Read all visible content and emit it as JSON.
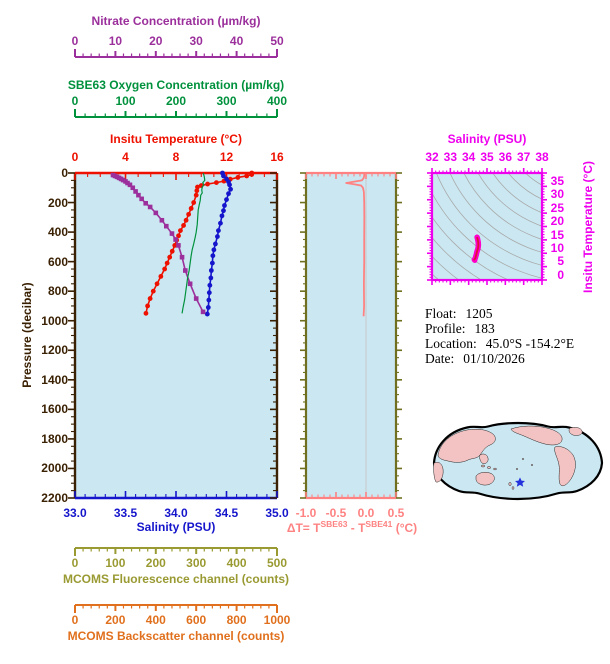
{
  "colors": {
    "nitrate": "#9b2f9b",
    "oxygen": "#00913d",
    "temperature": "#ee1100",
    "pressure_axis": "#3a2103",
    "salinity": "#1515cc",
    "fluorescence": "#9a9a33",
    "backscatter": "#e0701d",
    "deltaT": "#ff8282",
    "deltaT_side_axis": "#6f6f1f",
    "ts_magenta": "#ee00ee",
    "ts_data_outer": "#ff00cc",
    "ts_data_inner": "#dd1133",
    "panel_background": "#cbe8f2",
    "contour_gray": "#a9a9a9",
    "map_land": "#f3c3c3",
    "map_outline": "#000000",
    "star_blue": "#2233dd",
    "zero_gridline": "#c8c8c8"
  },
  "axes": {
    "nitrate": {
      "title": "Nitrate Concentration (µm/kg)",
      "ticks": [
        "0",
        "10",
        "20",
        "30",
        "40",
        "50"
      ]
    },
    "oxygen": {
      "title": "SBE63 Oxygen Concentration (µm/kg)",
      "ticks": [
        "0",
        "100",
        "200",
        "300",
        "400"
      ]
    },
    "temperature": {
      "title": "Insitu Temperature (°C)",
      "ticks": [
        "0",
        "4",
        "8",
        "12",
        "16"
      ]
    },
    "pressure": {
      "title": "Pressure (decibar)",
      "ticks": [
        "0",
        "200",
        "400",
        "600",
        "800",
        "1000",
        "1200",
        "1400",
        "1600",
        "1800",
        "2000",
        "2200"
      ]
    },
    "salinity": {
      "title": "Salinity (PSU)",
      "ticks": [
        "33.0",
        "33.5",
        "34.0",
        "34.5",
        "35.0"
      ]
    },
    "fluorescence": {
      "title": "MCOMS Fluorescence channel (counts)",
      "ticks": [
        "0",
        "100",
        "200",
        "300",
        "400",
        "500"
      ]
    },
    "backscatter": {
      "title": "MCOMS Backscatter channel (counts)",
      "ticks": [
        "0",
        "200",
        "400",
        "600",
        "800",
        "1000"
      ]
    },
    "deltaT": {
      "ticks": [
        "-1.0",
        "-0.5",
        "0.0",
        "0.5"
      ],
      "t1": "ΔT= T",
      "t2": "SBE63",
      "t3": " - T",
      "t4": "SBE41",
      "t5": " (°C)"
    },
    "ts": {
      "x_title": "Salinity (PSU)",
      "x_ticks": [
        "32",
        "33",
        "34",
        "35",
        "36",
        "37",
        "38"
      ],
      "y_title": "Insitu Temperature (°C)",
      "y_ticks": [
        "35",
        "30",
        "25",
        "20",
        "15",
        "10",
        "5",
        "0"
      ]
    }
  },
  "info": {
    "float_label": "Float:",
    "float_value": "1205",
    "profile_label": "Profile:",
    "profile_value": "183",
    "location_label": "Location:",
    "location_value": "45.0°S  -154.2°E",
    "date_label": "Date:",
    "date_value": "01/10/2026"
  },
  "chart_data": [
    {
      "id": "profiles",
      "type": "line",
      "ylabel": "Pressure (decibar)",
      "ylim": [
        0,
        2200
      ],
      "grid": false,
      "series": [
        {
          "name": "Insitu Temperature",
          "units": "°C",
          "xlim": [
            0,
            16
          ],
          "color_key": "temperature",
          "marker": "circle",
          "points": [
            [
              0,
              14.0
            ],
            [
              10,
              14.0
            ],
            [
              20,
              13.6
            ],
            [
              30,
              12.9
            ],
            [
              42,
              12.3
            ],
            [
              55,
              11.8
            ],
            [
              65,
              11.2
            ],
            [
              75,
              10.5
            ],
            [
              85,
              10.0
            ],
            [
              95,
              9.7
            ],
            [
              120,
              9.65
            ],
            [
              150,
              9.6
            ],
            [
              200,
              9.4
            ],
            [
              240,
              9.2
            ],
            [
              280,
              9.0
            ],
            [
              320,
              8.8
            ],
            [
              355,
              8.6
            ],
            [
              390,
              8.35
            ],
            [
              425,
              8.2
            ],
            [
              455,
              8.05
            ],
            [
              490,
              7.9
            ],
            [
              530,
              7.7
            ],
            [
              570,
              7.5
            ],
            [
              610,
              7.3
            ],
            [
              650,
              7.1
            ],
            [
              700,
              6.8
            ],
            [
              750,
              6.5
            ],
            [
              800,
              6.2
            ],
            [
              850,
              5.95
            ],
            [
              900,
              5.75
            ],
            [
              950,
              5.62
            ]
          ]
        },
        {
          "name": "Salinity",
          "units": "PSU",
          "xlim": [
            33,
            35
          ],
          "color_key": "salinity",
          "marker": "circle",
          "points": [
            [
              0,
              34.46
            ],
            [
              20,
              34.47
            ],
            [
              40,
              34.5
            ],
            [
              60,
              34.52
            ],
            [
              80,
              34.53
            ],
            [
              110,
              34.54
            ],
            [
              140,
              34.52
            ],
            [
              180,
              34.5
            ],
            [
              220,
              34.48
            ],
            [
              255,
              34.47
            ],
            [
              290,
              34.455
            ],
            [
              340,
              34.44
            ],
            [
              390,
              34.42
            ],
            [
              430,
              34.41
            ],
            [
              480,
              34.39
            ],
            [
              520,
              34.375
            ],
            [
              560,
              34.365
            ],
            [
              610,
              34.36
            ],
            [
              660,
              34.35
            ],
            [
              710,
              34.345
            ],
            [
              760,
              34.335
            ],
            [
              810,
              34.33
            ],
            [
              860,
              34.325
            ],
            [
              910,
              34.32
            ],
            [
              955,
              34.31
            ]
          ]
        },
        {
          "name": "Nitrate",
          "units": "µm/kg",
          "xlim": [
            0,
            50
          ],
          "color_key": "nitrate",
          "marker": "square",
          "points": [
            [
              14,
              9.4
            ],
            [
              20,
              9.9
            ],
            [
              26,
              10.4
            ],
            [
              33,
              10.9
            ],
            [
              40,
              11.4
            ],
            [
              48,
              11.9
            ],
            [
              57,
              12.5
            ],
            [
              68,
              13.0
            ],
            [
              80,
              13.6
            ],
            [
              100,
              14.3
            ],
            [
              125,
              15.0
            ],
            [
              150,
              15.7
            ],
            [
              175,
              16.5
            ],
            [
              205,
              17.5
            ],
            [
              230,
              18.6
            ],
            [
              270,
              20.0
            ],
            [
              320,
              21.5
            ],
            [
              360,
              22.6
            ],
            [
              410,
              24.0
            ],
            [
              450,
              24.9
            ],
            [
              490,
              25.6
            ],
            [
              570,
              26.5
            ],
            [
              660,
              27.3
            ],
            [
              750,
              28.5
            ],
            [
              850,
              30.0
            ],
            [
              940,
              31.7
            ]
          ]
        },
        {
          "name": "SBE63 Oxygen",
          "units": "µm/kg",
          "xlim": [
            0,
            400
          ],
          "color_key": "oxygen",
          "marker": "none",
          "points": [
            [
              0,
              254
            ],
            [
              25,
              256
            ],
            [
              50,
              257
            ],
            [
              65,
              253
            ],
            [
              80,
              255
            ],
            [
              95,
              252
            ],
            [
              115,
              251
            ],
            [
              135,
              252
            ],
            [
              150,
              249
            ],
            [
              185,
              248
            ],
            [
              215,
              246
            ],
            [
              250,
              244
            ],
            [
              300,
              243
            ],
            [
              350,
              242
            ],
            [
              400,
              240
            ],
            [
              435,
              238
            ],
            [
              480,
              235
            ],
            [
              520,
              232
            ],
            [
              560,
              230
            ],
            [
              610,
              228
            ],
            [
              660,
              226
            ],
            [
              710,
              223
            ],
            [
              760,
              221
            ],
            [
              810,
              219
            ],
            [
              860,
              217
            ],
            [
              910,
              214
            ],
            [
              950,
              212
            ]
          ]
        }
      ]
    },
    {
      "id": "temp_difference",
      "type": "line",
      "xlim": [
        -1.0,
        0.5
      ],
      "ylim": [
        0,
        2200
      ],
      "color_key": "deltaT",
      "points": [
        [
          0,
          -0.03
        ],
        [
          20,
          -0.03
        ],
        [
          35,
          -0.04
        ],
        [
          50,
          -0.07
        ],
        [
          60,
          -0.22
        ],
        [
          68,
          -0.33
        ],
        [
          76,
          -0.2
        ],
        [
          85,
          -0.08
        ],
        [
          100,
          -0.05
        ],
        [
          130,
          -0.035
        ],
        [
          200,
          -0.03
        ],
        [
          300,
          -0.028
        ],
        [
          450,
          -0.03
        ],
        [
          600,
          -0.03
        ],
        [
          750,
          -0.035
        ],
        [
          900,
          -0.032
        ],
        [
          970,
          -0.04
        ]
      ]
    },
    {
      "id": "ts_diagram",
      "type": "scatter",
      "xlim": [
        32,
        38
      ],
      "ylim": [
        -2,
        38
      ],
      "points": [
        [
          34.46,
          14.0
        ],
        [
          34.49,
          13.2
        ],
        [
          34.52,
          12.2
        ],
        [
          34.53,
          11.2
        ],
        [
          34.52,
          10.3
        ],
        [
          34.5,
          9.6
        ],
        [
          34.47,
          9.0
        ],
        [
          34.44,
          8.3
        ],
        [
          34.42,
          7.6
        ],
        [
          34.39,
          6.9
        ],
        [
          34.37,
          6.3
        ],
        [
          34.34,
          5.9
        ],
        [
          34.31,
          5.6
        ],
        [
          34.33,
          5.4
        ]
      ]
    }
  ]
}
